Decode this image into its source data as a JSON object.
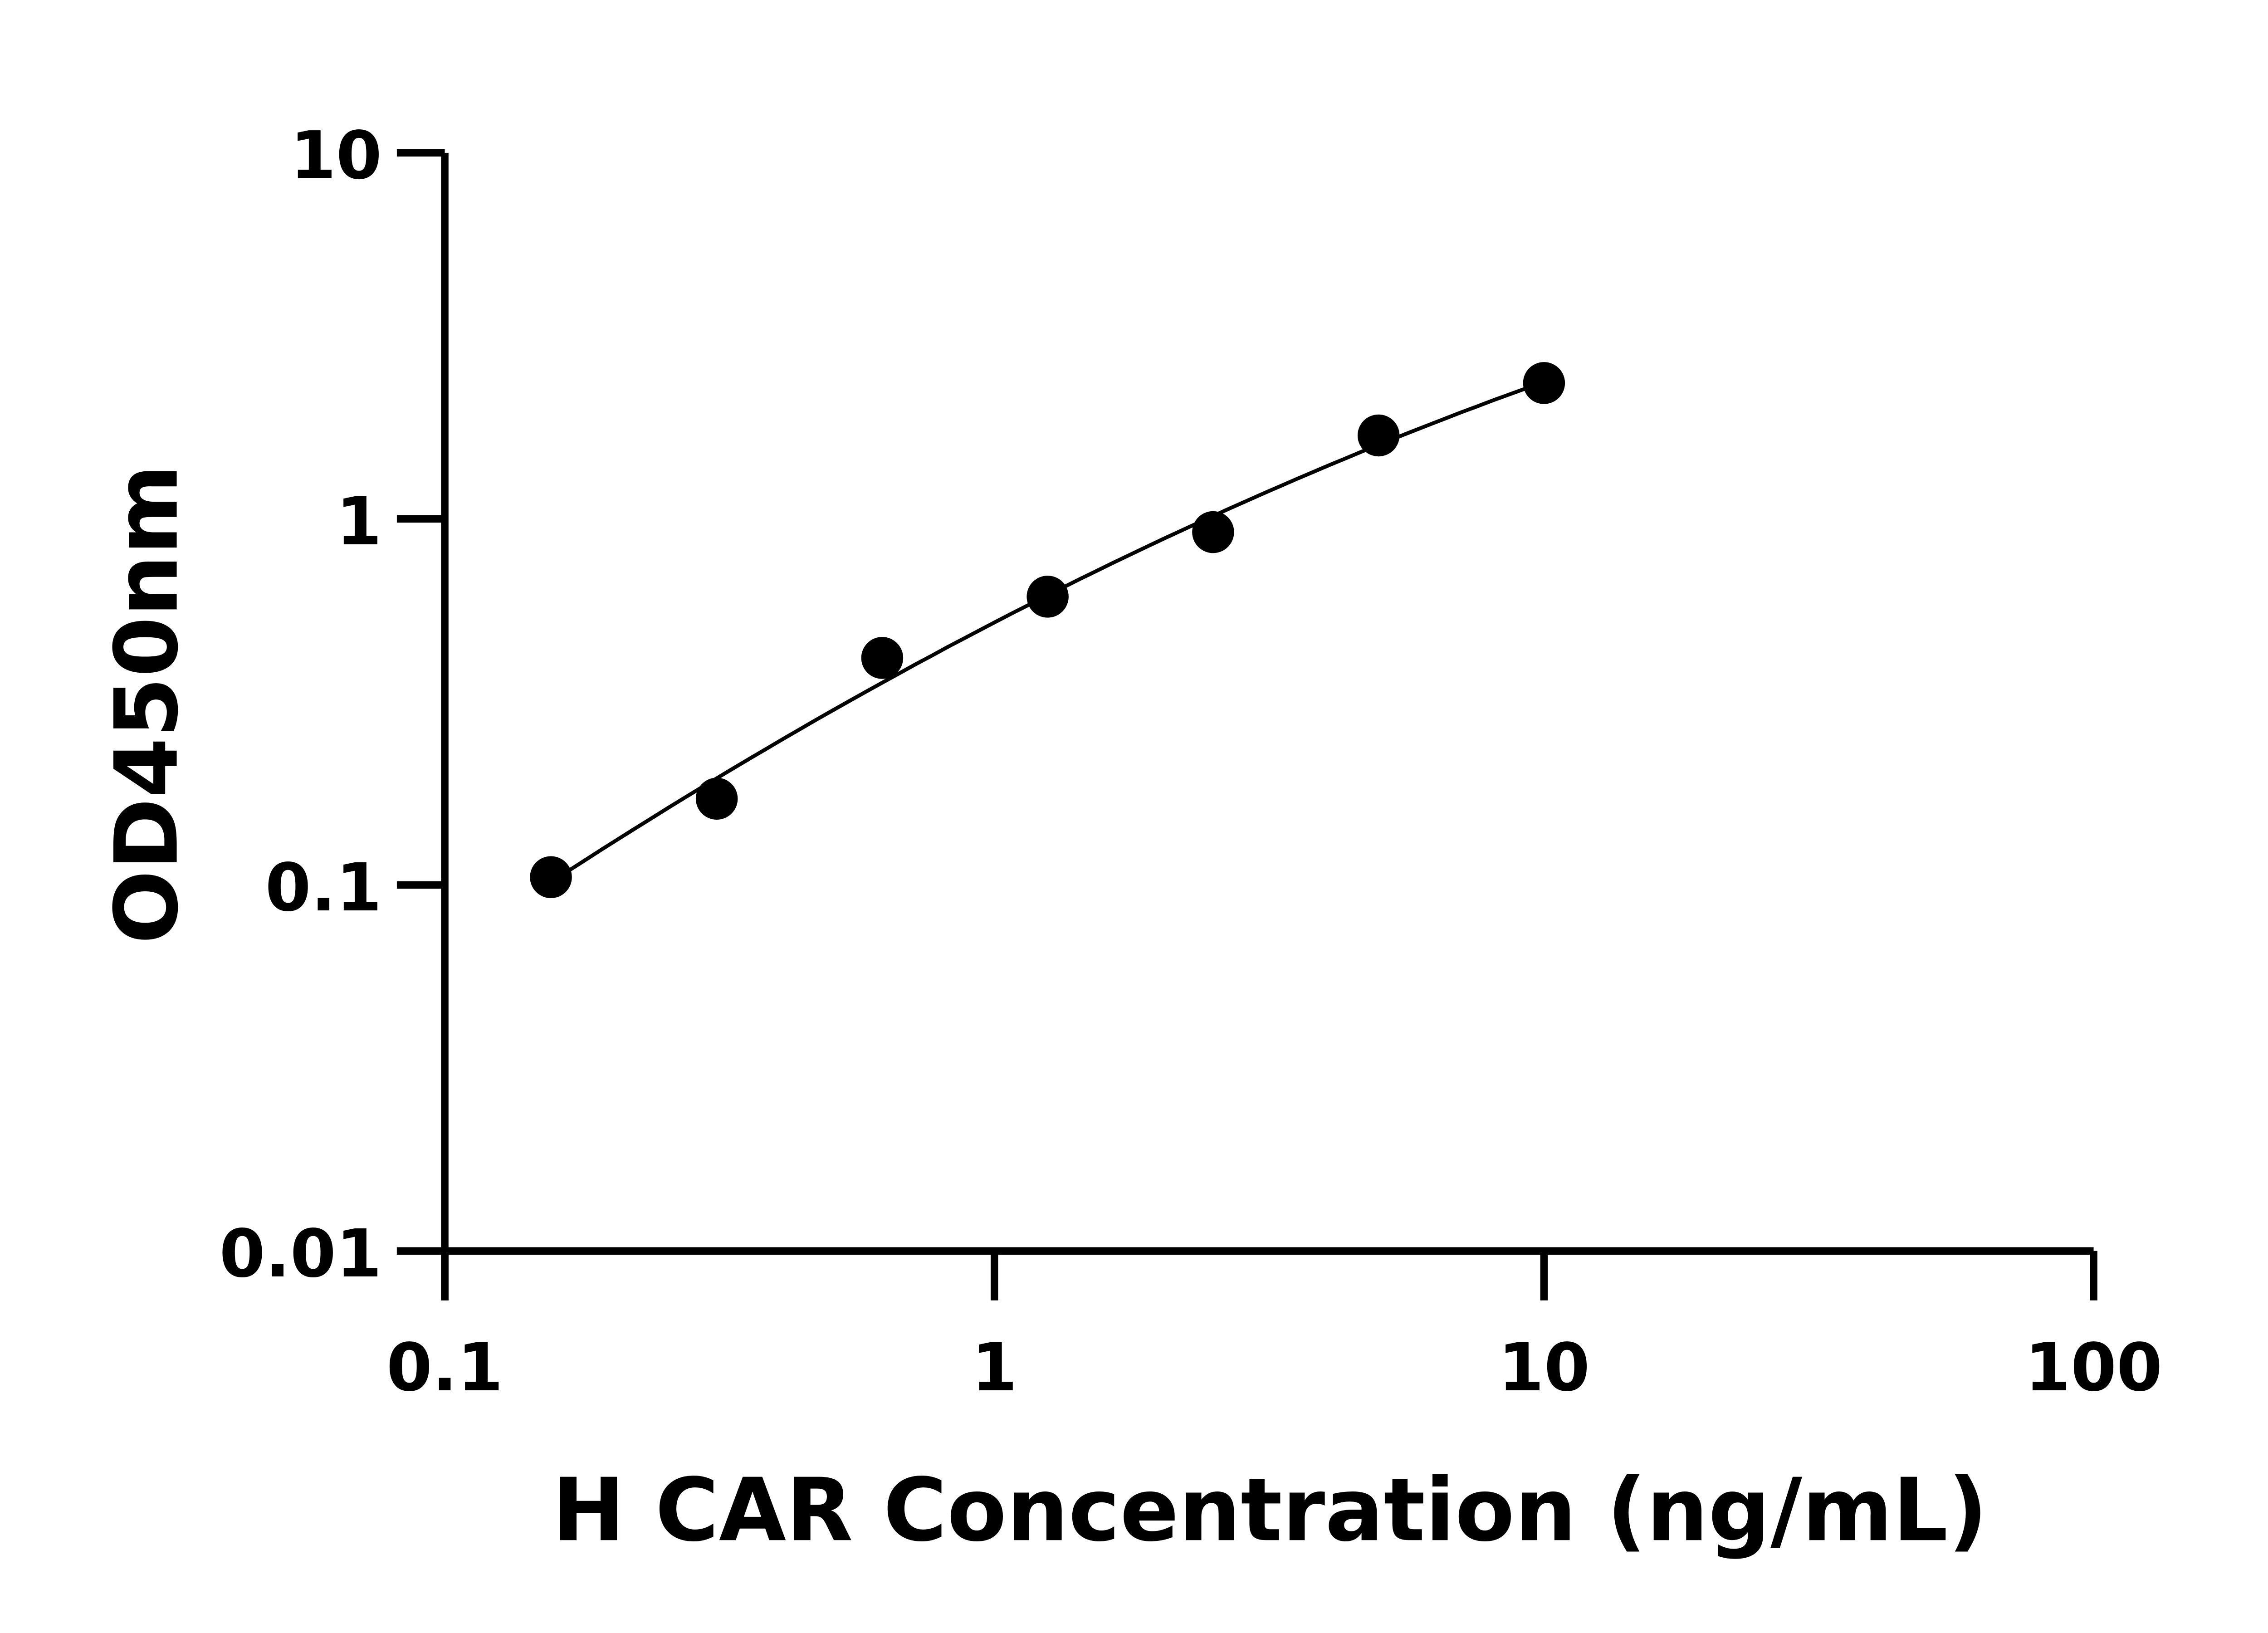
{
  "chart_data": {
    "type": "scatter",
    "title": "",
    "xlabel": "H CAR Concentration (ng/mL)",
    "ylabel": "OD450nm",
    "x_scale": "log",
    "y_scale": "log",
    "xlim": [
      0.1,
      100
    ],
    "ylim": [
      0.01,
      10
    ],
    "x_ticks": [
      "0.1",
      "1",
      "10",
      "100"
    ],
    "y_ticks": [
      "0.01",
      "0.1",
      "1",
      "10"
    ],
    "grid": false,
    "legend": "none",
    "fit_line": true,
    "colors": {
      "points": "#000000",
      "line": "#000000",
      "axes": "#000000"
    },
    "series": [
      {
        "x": [
          0.156,
          0.3125,
          0.625,
          1.25,
          2.5,
          5,
          10
        ],
        "y": [
          0.105,
          0.172,
          0.417,
          0.613,
          0.92,
          1.69,
          2.35
        ]
      }
    ]
  }
}
